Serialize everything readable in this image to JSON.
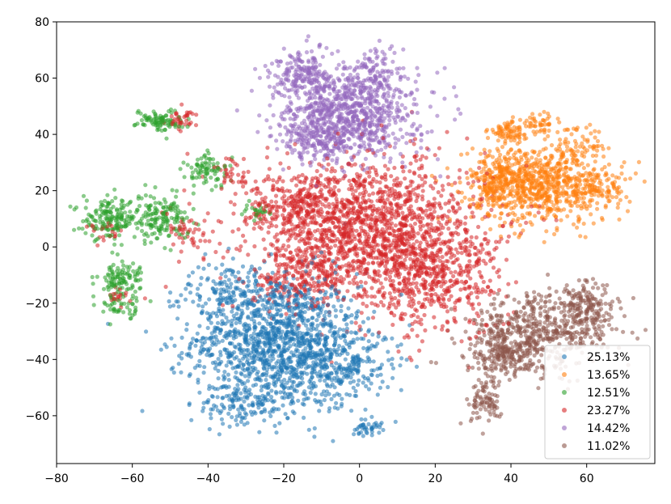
{
  "chart_data": {
    "type": "scatter",
    "title": "",
    "xlabel": "",
    "ylabel": "",
    "xlim": [
      -80,
      78
    ],
    "ylim": [
      -77,
      80
    ],
    "xticks": [
      -80,
      -60,
      -40,
      -20,
      0,
      20,
      40,
      60
    ],
    "yticks": [
      -60,
      -40,
      -20,
      0,
      20,
      40,
      60,
      80
    ],
    "xtick_labels": [
      "−80",
      "−60",
      "−40",
      "−20",
      "0",
      "20",
      "40",
      "60"
    ],
    "ytick_labels": [
      "−60",
      "−40",
      "−20",
      "0",
      "20",
      "40",
      "60",
      "80"
    ],
    "grid": false,
    "legend_position": "bottom-right",
    "series": [
      {
        "name": "25.13%",
        "color": "#1f77b4",
        "clusters": [
          {
            "cx": -22,
            "cy": -33,
            "sx": 11,
            "sy": 12,
            "n": 1300
          },
          {
            "cx": -5,
            "cy": -42,
            "sx": 7,
            "sy": 7,
            "n": 250
          },
          {
            "cx": -30,
            "cy": -56,
            "sx": 6,
            "sy": 4,
            "n": 120
          },
          {
            "cx": 2,
            "cy": -64,
            "sx": 2,
            "sy": 1.5,
            "n": 40
          },
          {
            "cx": -35,
            "cy": -15,
            "sx": 5,
            "sy": 5,
            "n": 100
          }
        ]
      },
      {
        "name": "13.65%",
        "color": "#ff7f0e",
        "clusters": [
          {
            "cx": 48,
            "cy": 22,
            "sx": 9,
            "sy": 7,
            "n": 700
          },
          {
            "cx": 37,
            "cy": 24,
            "sx": 5,
            "sy": 5,
            "n": 200
          },
          {
            "cx": 40,
            "cy": 41,
            "sx": 3,
            "sy": 2,
            "n": 80
          },
          {
            "cx": 48,
            "cy": 44,
            "sx": 2,
            "sy": 1.5,
            "n": 40
          },
          {
            "cx": 62,
            "cy": 20,
            "sx": 4,
            "sy": 3,
            "n": 90
          },
          {
            "cx": 58,
            "cy": 36,
            "sx": 4,
            "sy": 3,
            "n": 60
          }
        ]
      },
      {
        "name": "12.51%",
        "color": "#2ca02c",
        "clusters": [
          {
            "cx": -66,
            "cy": 10,
            "sx": 3.5,
            "sy": 3.5,
            "n": 150
          },
          {
            "cx": -53,
            "cy": 10,
            "sx": 4,
            "sy": 4,
            "n": 170
          },
          {
            "cx": -63,
            "cy": -12,
            "sx": 3,
            "sy": 3.5,
            "n": 120
          },
          {
            "cx": -53,
            "cy": 45,
            "sx": 3,
            "sy": 2,
            "n": 90
          },
          {
            "cx": -40,
            "cy": 27,
            "sx": 3,
            "sy": 3,
            "n": 80
          },
          {
            "cx": -27,
            "cy": 13,
            "sx": 2,
            "sy": 2,
            "n": 25
          },
          {
            "cx": -63,
            "cy": -22,
            "sx": 2,
            "sy": 2,
            "n": 30
          }
        ]
      },
      {
        "name": "23.27%",
        "color": "#d62728",
        "clusters": [
          {
            "cx": 3,
            "cy": 5,
            "sx": 15,
            "sy": 13,
            "n": 1700
          },
          {
            "cx": 20,
            "cy": -12,
            "sx": 9,
            "sy": 9,
            "n": 350
          },
          {
            "cx": -15,
            "cy": 15,
            "sx": 6,
            "sy": 5,
            "n": 200
          },
          {
            "cx": -15,
            "cy": -10,
            "sx": 6,
            "sy": 5,
            "n": 150
          },
          {
            "cx": -47,
            "cy": 45,
            "sx": 2.5,
            "sy": 2,
            "n": 40
          },
          {
            "cx": -34,
            "cy": 26,
            "sx": 2.5,
            "sy": 3,
            "n": 35
          },
          {
            "cx": -45,
            "cy": 5,
            "sx": 3,
            "sy": 4,
            "n": 45
          },
          {
            "cx": -67,
            "cy": 5,
            "sx": 2.5,
            "sy": 2,
            "n": 25
          },
          {
            "cx": -63,
            "cy": -18,
            "sx": 2,
            "sy": 2,
            "n": 20
          },
          {
            "cx": -28,
            "cy": 10,
            "sx": 2,
            "sy": 2,
            "n": 20
          }
        ]
      },
      {
        "name": "14.42%",
        "color": "#9467bd",
        "clusters": [
          {
            "cx": -3,
            "cy": 48,
            "sx": 9,
            "sy": 8,
            "n": 900
          },
          {
            "cx": -15,
            "cy": 62,
            "sx": 4,
            "sy": 4,
            "n": 150
          },
          {
            "cx": -10,
            "cy": 38,
            "sx": 5,
            "sy": 4,
            "n": 150
          },
          {
            "cx": 5,
            "cy": 62,
            "sx": 4,
            "sy": 4,
            "n": 80
          }
        ]
      },
      {
        "name": "11.02%",
        "color": "#8c564b",
        "clusters": [
          {
            "cx": 48,
            "cy": -30,
            "sx": 9,
            "sy": 7,
            "n": 500
          },
          {
            "cx": 38,
            "cy": -38,
            "sx": 5,
            "sy": 4,
            "n": 200
          },
          {
            "cx": 60,
            "cy": -22,
            "sx": 4,
            "sy": 5,
            "n": 150
          },
          {
            "cx": 34,
            "cy": -55,
            "sx": 2.5,
            "sy": 4,
            "n": 90
          }
        ]
      }
    ]
  }
}
